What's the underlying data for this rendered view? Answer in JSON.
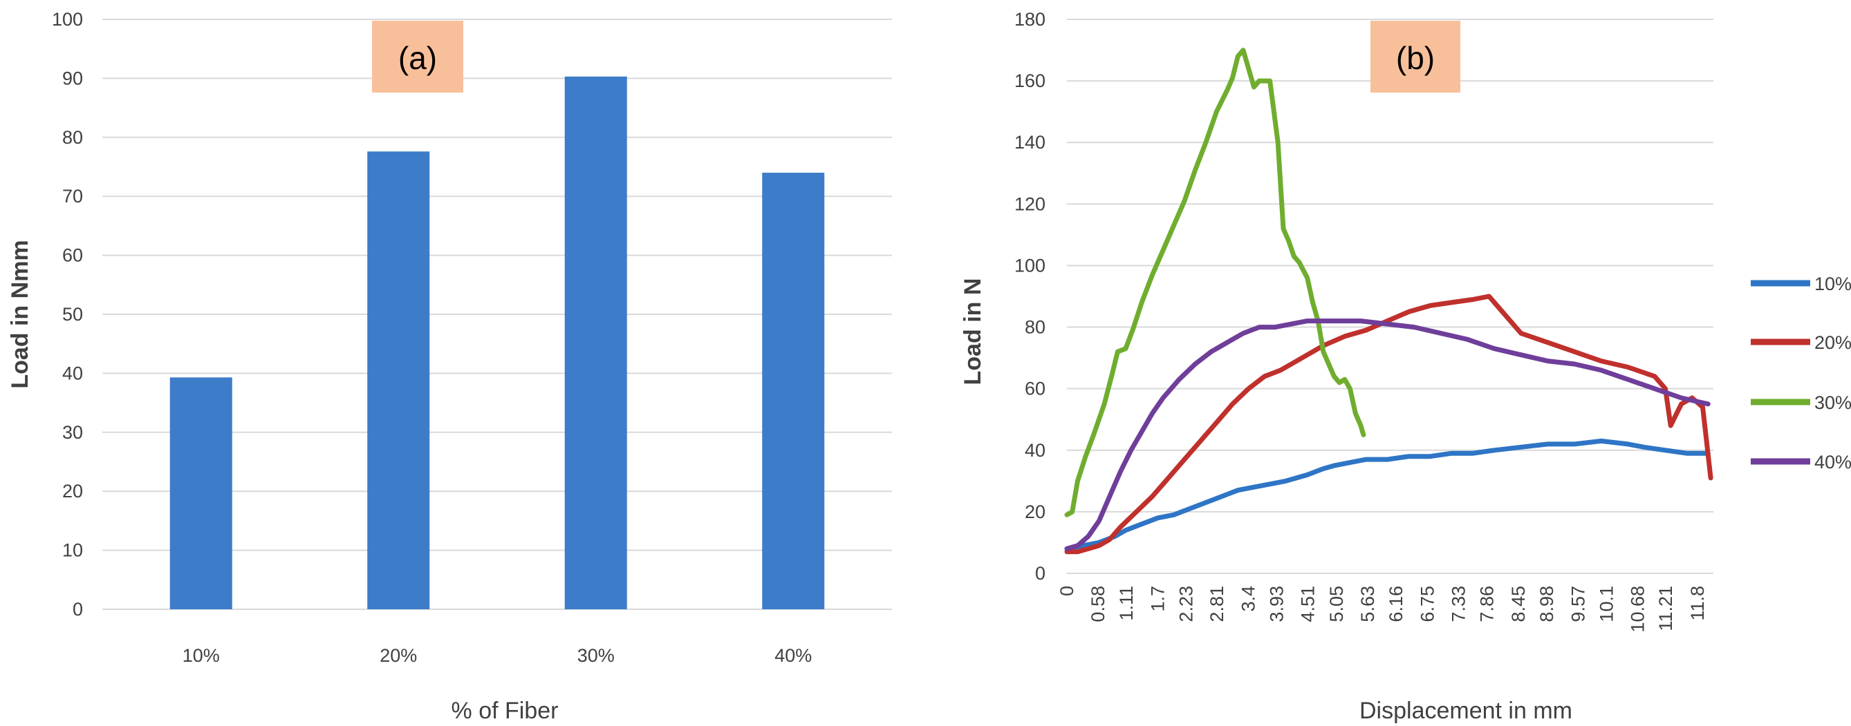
{
  "colors": {
    "bar": "#3d7cc9",
    "grid": "#d9d9d9",
    "label_box": "#f8c09a",
    "10%": "#2e75c6",
    "20%": "#c0302c",
    "30%": "#70ad2f",
    "40%": "#6f3e9a"
  },
  "chart_data": [
    {
      "type": "bar",
      "panel_label": "(a)",
      "title": "",
      "xlabel": "% of Fiber",
      "ylabel": "Load in Nmm",
      "categories": [
        "10%",
        "20%",
        "30%",
        "40%"
      ],
      "values": [
        39.3,
        77.6,
        90.3,
        74.0
      ],
      "ylim": [
        0,
        100
      ],
      "yticks": [
        0,
        10,
        20,
        30,
        40,
        50,
        60,
        70,
        80,
        90,
        100
      ],
      "grid": true,
      "legend": "none"
    },
    {
      "type": "line",
      "panel_label": "(b)",
      "title": "",
      "xlabel": "Displacement in mm",
      "ylabel": "Load in N",
      "xlim": [
        0,
        12.1
      ],
      "ylim": [
        0,
        180
      ],
      "yticks": [
        0,
        20,
        40,
        60,
        80,
        100,
        120,
        140,
        160,
        180
      ],
      "xtick_labels": [
        "0",
        "0.58",
        "1.11",
        "1.7",
        "2.23",
        "2.81",
        "3.4",
        "3.93",
        "4.51",
        "5.05",
        "5.63",
        "6.16",
        "6.75",
        "7.33",
        "7.86",
        "8.45",
        "8.98",
        "9.57",
        "10.1",
        "10.68",
        "11.21",
        "11.8"
      ],
      "xtick_values": [
        0,
        0.58,
        1.11,
        1.7,
        2.23,
        2.81,
        3.4,
        3.93,
        4.51,
        5.05,
        5.63,
        6.16,
        6.75,
        7.33,
        7.86,
        8.45,
        8.98,
        9.57,
        10.1,
        10.68,
        11.21,
        11.8
      ],
      "grid": true,
      "legend": "right",
      "series": [
        {
          "name": "10%",
          "x": [
            0,
            0.3,
            0.6,
            0.9,
            1.1,
            1.4,
            1.7,
            2.0,
            2.3,
            2.6,
            2.9,
            3.2,
            3.5,
            3.8,
            4.1,
            4.5,
            4.8,
            5.0,
            5.3,
            5.6,
            6.0,
            6.4,
            6.8,
            7.2,
            7.6,
            8.0,
            8.5,
            9.0,
            9.5,
            10.0,
            10.5,
            10.8,
            11.2,
            11.6,
            12.0
          ],
          "y": [
            8,
            9,
            10,
            12,
            14,
            16,
            18,
            19,
            21,
            23,
            25,
            27,
            28,
            29,
            30,
            32,
            34,
            35,
            36,
            37,
            37,
            38,
            38,
            39,
            39,
            40,
            41,
            42,
            42,
            43,
            42,
            41,
            40,
            39,
            39
          ]
        },
        {
          "name": "20%",
          "x": [
            0,
            0.2,
            0.4,
            0.6,
            0.8,
            1.0,
            1.3,
            1.6,
            1.9,
            2.2,
            2.5,
            2.8,
            3.1,
            3.4,
            3.7,
            4.0,
            4.4,
            4.8,
            5.2,
            5.6,
            6.0,
            6.4,
            6.8,
            7.2,
            7.6,
            7.9,
            8.2,
            8.5,
            9.0,
            9.5,
            10.0,
            10.5,
            11.0,
            11.2,
            11.3,
            11.5,
            11.7,
            11.9,
            12.05
          ],
          "y": [
            7,
            7,
            8,
            9,
            11,
            15,
            20,
            25,
            31,
            37,
            43,
            49,
            55,
            60,
            64,
            66,
            70,
            74,
            77,
            79,
            82,
            85,
            87,
            88,
            89,
            90,
            84,
            78,
            75,
            72,
            69,
            67,
            64,
            60,
            48,
            55,
            57,
            54,
            31
          ]
        },
        {
          "name": "30%",
          "x": [
            0,
            0.1,
            0.2,
            0.35,
            0.5,
            0.7,
            0.85,
            0.95,
            1.1,
            1.25,
            1.4,
            1.6,
            1.8,
            2.0,
            2.2,
            2.4,
            2.6,
            2.8,
            3.0,
            3.1,
            3.2,
            3.3,
            3.4,
            3.5,
            3.6,
            3.8,
            3.95,
            4.05,
            4.15,
            4.25,
            4.35,
            4.5,
            4.6,
            4.7,
            4.8,
            4.9,
            5.0,
            5.1,
            5.2,
            5.3,
            5.4,
            5.5,
            5.55
          ],
          "y": [
            19,
            20,
            30,
            38,
            45,
            55,
            65,
            72,
            73,
            80,
            88,
            97,
            105,
            113,
            121,
            131,
            140,
            150,
            157,
            161,
            168,
            170,
            164,
            158,
            160,
            160,
            140,
            112,
            108,
            103,
            101,
            96,
            88,
            82,
            72,
            68,
            64,
            62,
            63,
            60,
            52,
            48,
            45
          ]
        },
        {
          "name": "40%",
          "x": [
            0,
            0.2,
            0.4,
            0.6,
            0.8,
            1.0,
            1.2,
            1.4,
            1.6,
            1.8,
            2.1,
            2.4,
            2.7,
            3.0,
            3.3,
            3.6,
            3.9,
            4.2,
            4.5,
            4.8,
            5.1,
            5.5,
            6.0,
            6.5,
            7.0,
            7.5,
            8.0,
            8.5,
            9.0,
            9.5,
            10.0,
            10.5,
            11.0,
            11.5,
            12.0
          ],
          "y": [
            8,
            9,
            12,
            17,
            25,
            33,
            40,
            46,
            52,
            57,
            63,
            68,
            72,
            75,
            78,
            80,
            80,
            81,
            82,
            82,
            82,
            82,
            81,
            80,
            78,
            76,
            73,
            71,
            69,
            68,
            66,
            63,
            60,
            57,
            55
          ]
        }
      ]
    }
  ]
}
